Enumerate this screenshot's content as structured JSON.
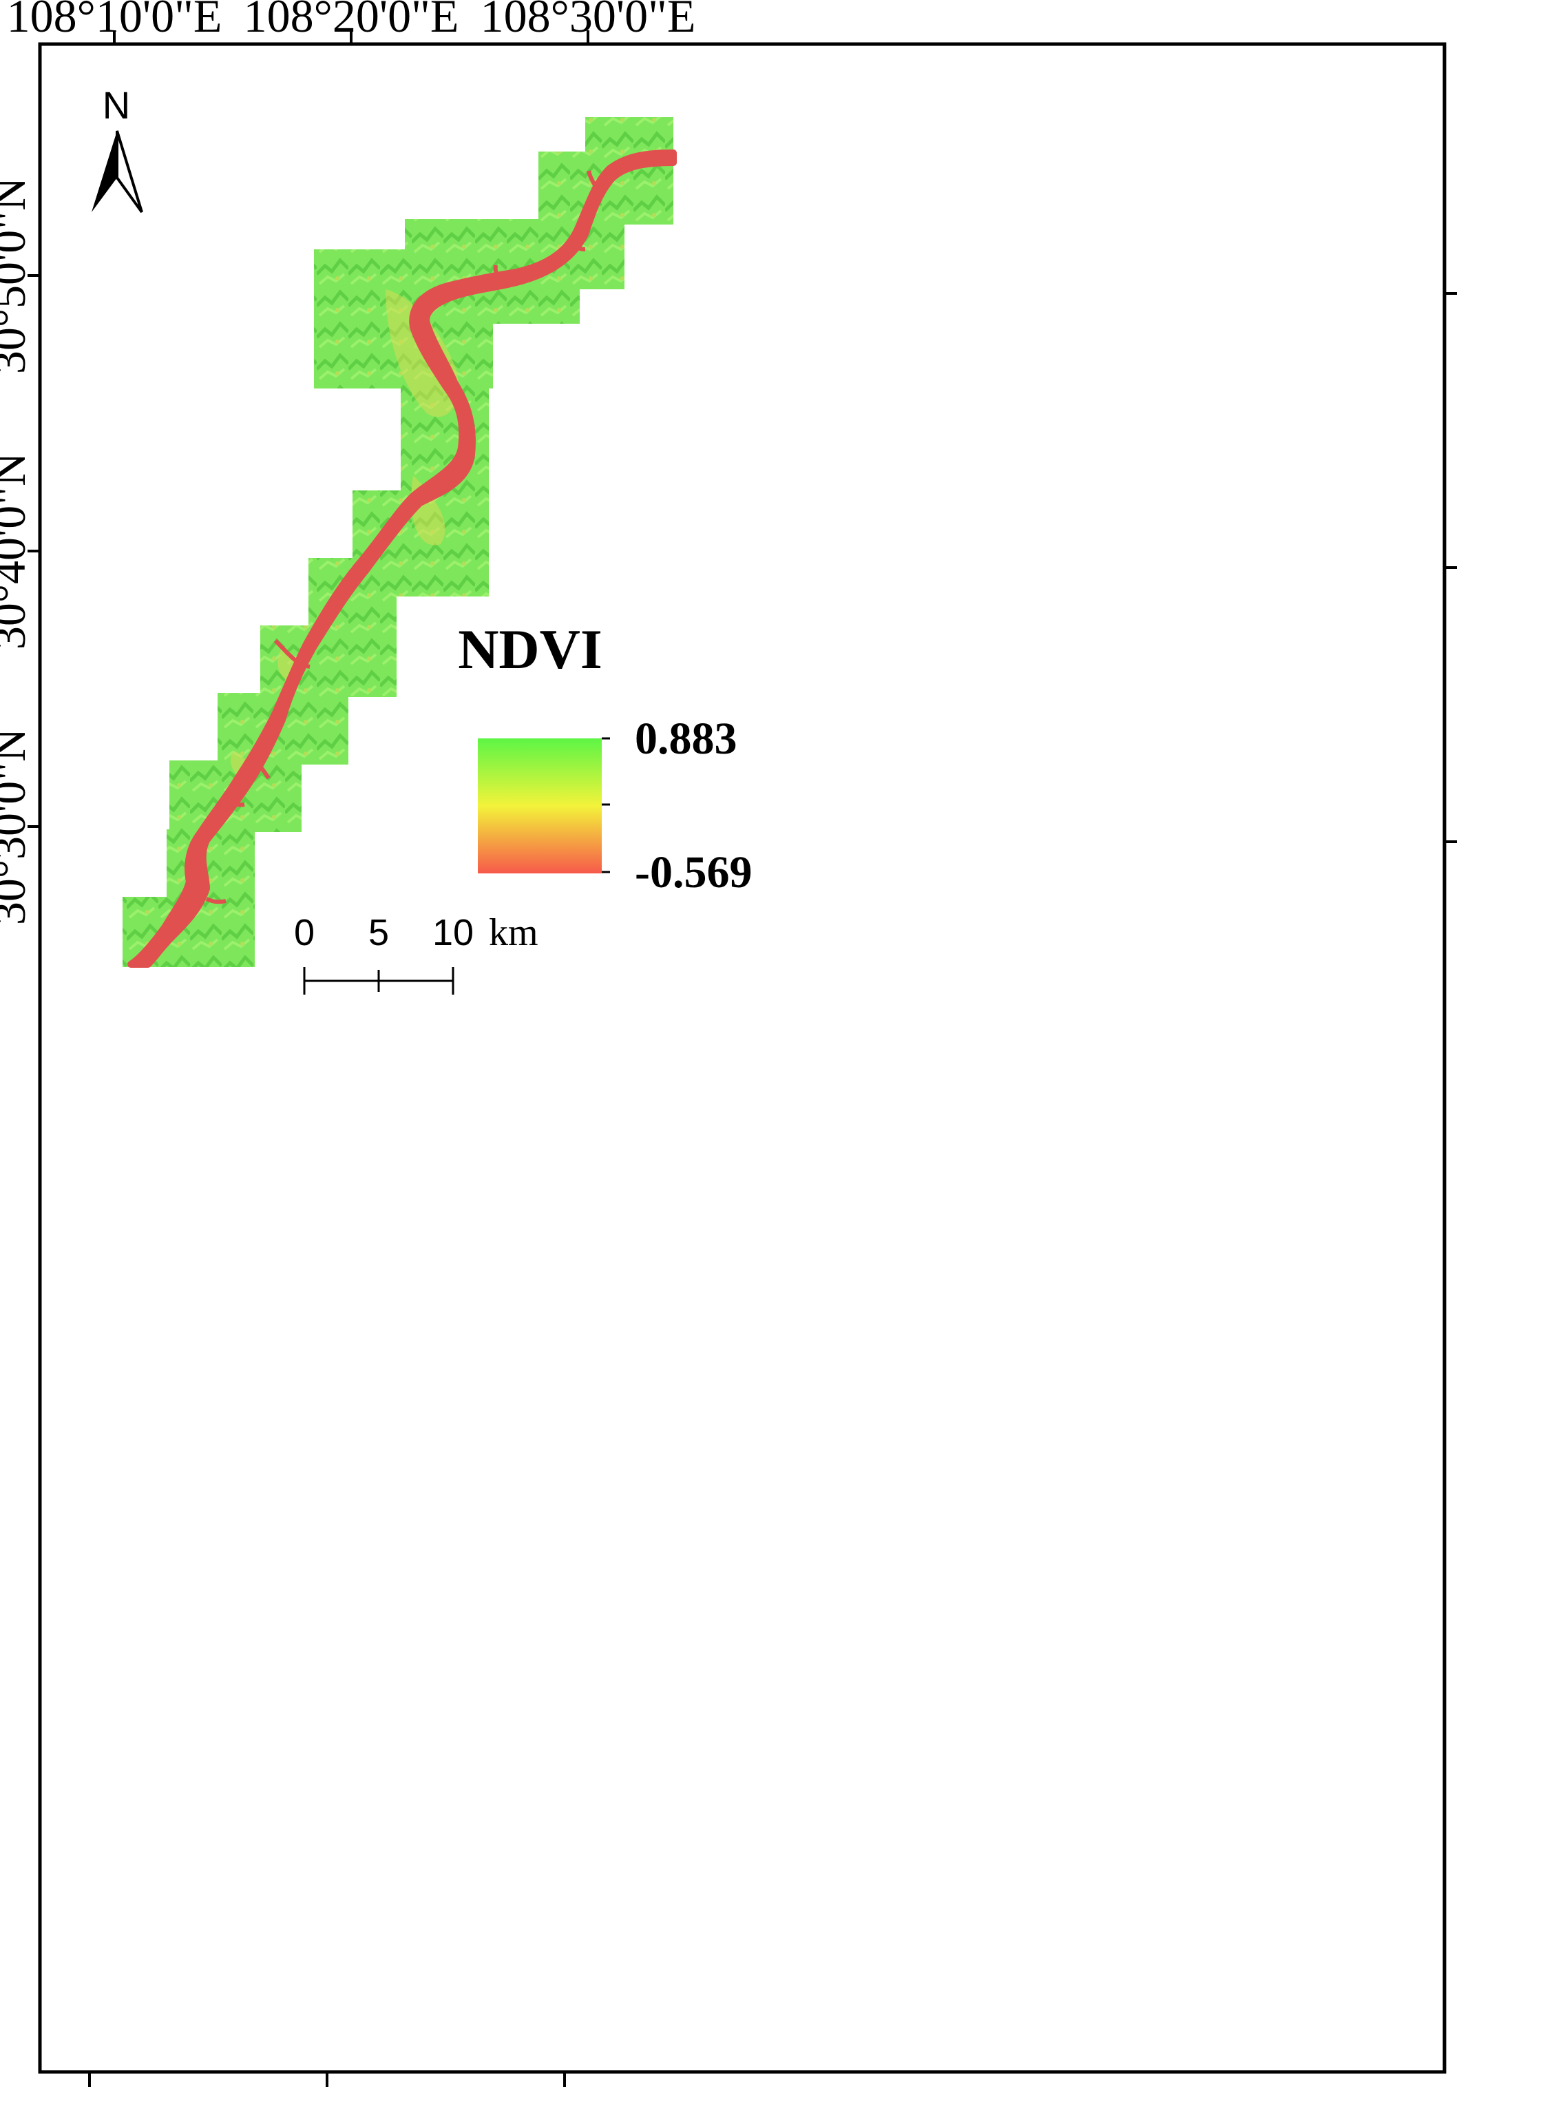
{
  "map": {
    "top_longitude_labels": [
      "108°10'0\"E",
      "108°20'0\"E",
      "108°30'0\"E"
    ],
    "left_latitude_labels": [
      "30°50'0\"N",
      "30°40'0\"N",
      "30°30'0\"N"
    ],
    "north_arrow": {
      "label": "N",
      "icon": "north-arrow-icon"
    },
    "legend": {
      "title": "NDVI",
      "max_label": "0.883",
      "min_label": "-0.569",
      "max_value": 0.883,
      "min_value": -0.569,
      "colors": [
        "#5df545",
        "#f3f33a",
        "#f6594a"
      ]
    },
    "scale_bar": {
      "ticks": [
        "0",
        "5",
        "10"
      ],
      "unit": "km"
    },
    "colors": {
      "vegetation": "#7ee65a",
      "vegetation_dark": "#5fcf45",
      "transition": "#cde15a",
      "water": "#e0504f",
      "frame": "#000000"
    }
  }
}
